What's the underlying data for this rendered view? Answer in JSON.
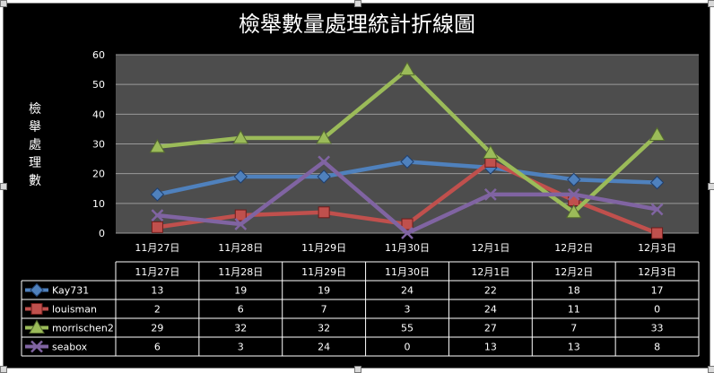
{
  "chart_data": {
    "type": "line",
    "title": "檢舉數量處理統計折線圖",
    "ylabel": "檢舉處理數",
    "xlabel": "",
    "categories": [
      "11月27日",
      "11月28日",
      "11月29日",
      "11月30日",
      "12月1日",
      "12月2日",
      "12月3日"
    ],
    "ylim": [
      0,
      60
    ],
    "yticks": [
      0,
      10,
      20,
      30,
      40,
      50,
      60
    ],
    "grid": true,
    "legend": "data-table",
    "series": [
      {
        "name": "Kay731",
        "values": [
          13,
          19,
          19,
          24,
          22,
          18,
          17
        ],
        "color": "#4f81bd",
        "marker": "diamond"
      },
      {
        "name": "louisman",
        "values": [
          2,
          6,
          7,
          3,
          24,
          11,
          0
        ],
        "color": "#c0504d",
        "marker": "square"
      },
      {
        "name": "morrischen2",
        "values": [
          29,
          32,
          32,
          55,
          27,
          7,
          33
        ],
        "color": "#9bbb59",
        "marker": "triangle"
      },
      {
        "name": "seabox",
        "values": [
          6,
          3,
          24,
          0,
          13,
          13,
          8
        ],
        "color": "#8064a2",
        "marker": "x"
      }
    ]
  },
  "colors": {
    "background": "#000000",
    "plot_area": "#4d4d4d",
    "gridline": "#9a9a9a",
    "text": "#ffffff",
    "table_border": "#ffffff"
  }
}
